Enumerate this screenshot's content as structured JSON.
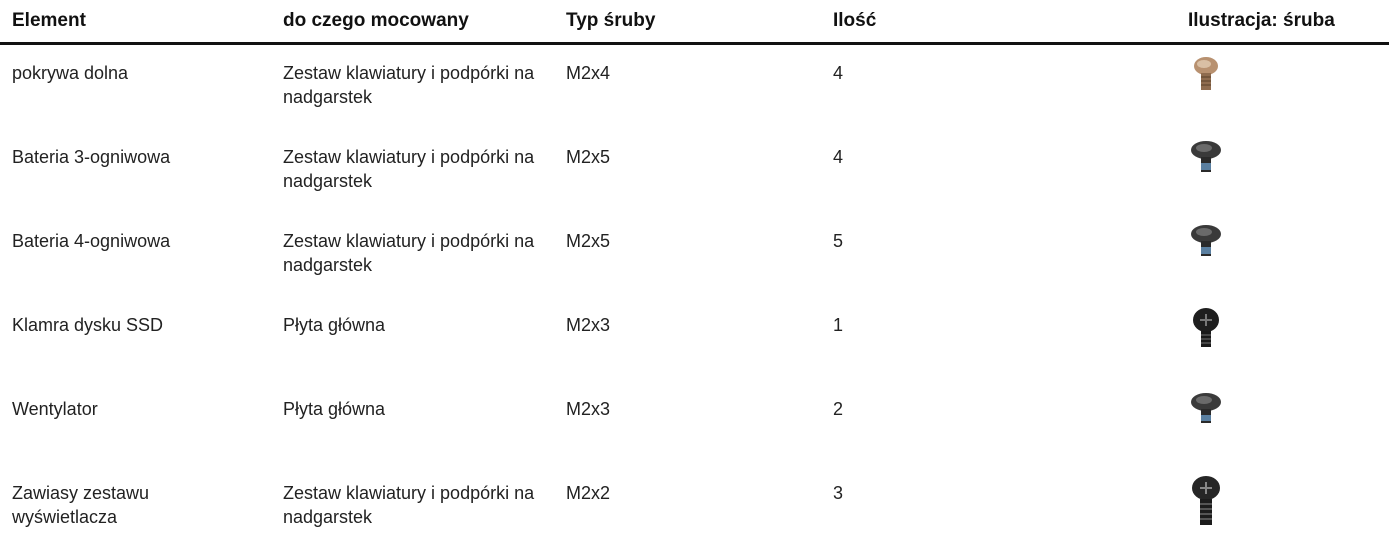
{
  "table": {
    "header": [
      "Element",
      "do czego mocowany",
      "Typ śruby",
      "Ilość",
      "Ilustracja: śruba"
    ],
    "rows": [
      [
        "pokrywa dolna",
        "Zestaw klawiatury i podpórki na nadgarstek",
        "M2x4",
        4
      ],
      [
        "Bateria 3-ogniwowa",
        "Zestaw klawiatury i podpórki na nadgarstek",
        "M2x5",
        4
      ],
      [
        "Bateria 4-ogniwowa",
        "Zestaw klawiatury i podpórki na nadgarstek",
        "M2x5",
        5
      ],
      [
        "Klamra dysku SSD",
        "Płyta główna",
        "M2x3",
        1
      ],
      [
        "Wentylator",
        "Płyta główna",
        "M2x3",
        2
      ],
      [
        "Zawiasy zestawu wyświetlacza",
        "Zestaw klawiatury i podpórki na nadgarstek",
        "M2x2",
        3
      ]
    ]
  }
}
